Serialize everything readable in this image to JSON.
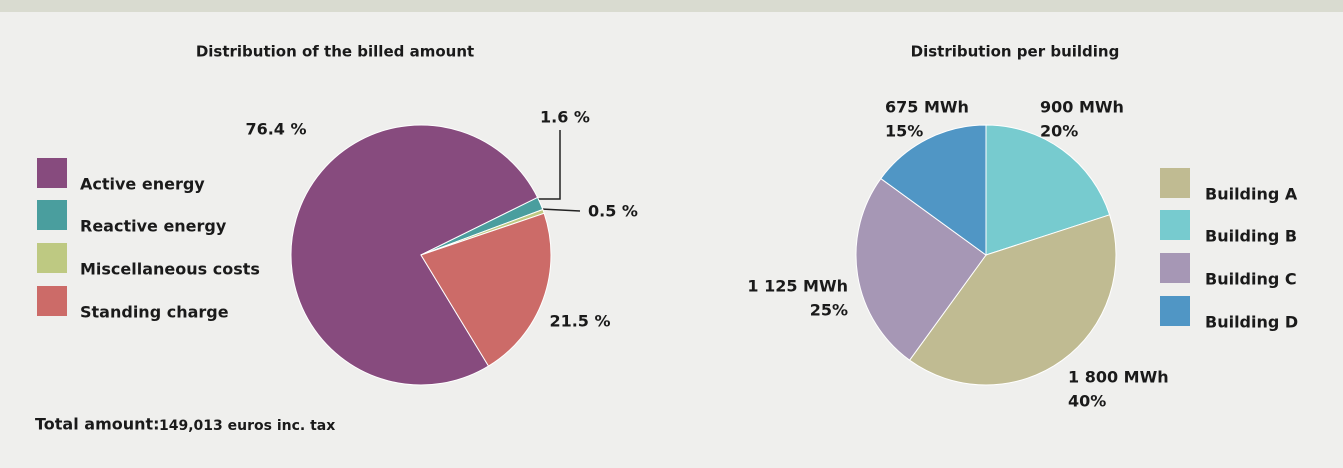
{
  "chart_data": [
    {
      "type": "pie",
      "title": "Distribution of the billed amount",
      "categories": [
        "Active energy",
        "Reactive energy",
        "Miscellaneous costs",
        "Standing charge"
      ],
      "values": [
        76.4,
        1.6,
        0.5,
        21.5
      ],
      "value_labels": [
        "76.4 %",
        "1.6 %",
        "0.5 %",
        "21.5 %"
      ],
      "colors": [
        "#874b7e",
        "#4a9e9e",
        "#bec982",
        "#cc6b68"
      ],
      "total": {
        "label": "Total amount:",
        "value": "149,013 euros inc. tax"
      }
    },
    {
      "type": "pie",
      "title": "Distribution per building",
      "categories": [
        "Building A",
        "Building B",
        "Building C",
        "Building D"
      ],
      "values": [
        1800,
        900,
        1125,
        675
      ],
      "value_labels": [
        "1 800 MWh",
        "900 MWh",
        "1 125 MWh",
        "675 MWh"
      ],
      "percents": [
        40,
        20,
        25,
        15
      ],
      "percent_labels": [
        "40%",
        "20%",
        "25%",
        "15%"
      ],
      "colors": [
        "#c0bb92",
        "#77cbcf",
        "#a697b5",
        "#5096c5"
      ]
    }
  ]
}
